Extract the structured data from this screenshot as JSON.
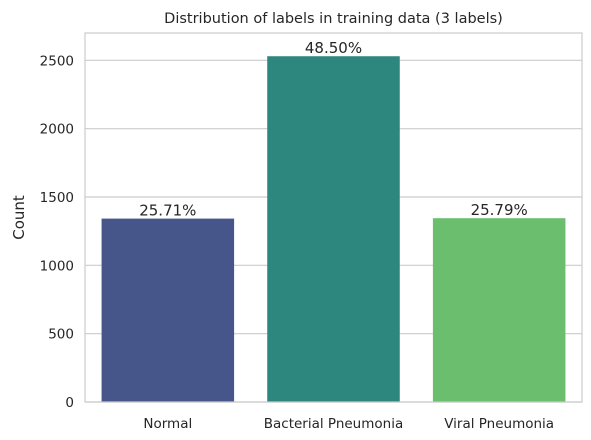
{
  "chart_data": {
    "type": "bar",
    "title": "Distribution of labels in training data (3 labels)",
    "xlabel": "",
    "ylabel": "Count",
    "categories": [
      "Normal",
      "Bacterial Pneumonia",
      "Viral Pneumonia"
    ],
    "values": [
      1342,
      2530,
      1345
    ],
    "data_labels": [
      "25.71%",
      "48.50%",
      "25.79%"
    ],
    "colors": [
      "#46568a",
      "#2e877f",
      "#6abe6e"
    ],
    "ylim": [
      0,
      2700
    ],
    "yticks": [
      0,
      500,
      1000,
      1500,
      2000,
      2500
    ],
    "ytick_labels": [
      "0",
      "500",
      "1000",
      "1500",
      "2000",
      "2500"
    ],
    "grid": "horizontal",
    "legend": "none"
  }
}
